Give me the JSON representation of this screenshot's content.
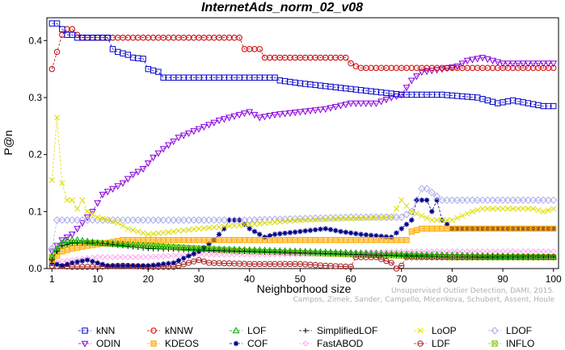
{
  "chart_data": {
    "type": "line",
    "title": "InternetAds_norm_02_v08",
    "xlabel": "Neighborhood size",
    "ylabel": "P@n",
    "xlim": [
      0,
      101
    ],
    "ylim": [
      0,
      0.44
    ],
    "xticks": [
      1,
      10,
      20,
      30,
      40,
      50,
      60,
      70,
      80,
      90,
      100
    ],
    "yticks": [
      0,
      0.1,
      0.2,
      0.3,
      0.4
    ],
    "ytick_labels": [
      "0.0",
      "0.1",
      "0.2",
      "0.3",
      "0.4"
    ],
    "grid": false,
    "legend_position": "bottom",
    "credit_lines": [
      "Unsupervised Outlier Detection, DAMI, 2015.",
      "Campos, Zimek, Sander, Campello, Micenkova, Schubert, Assent, Houle"
    ],
    "series": [
      {
        "name": "kNN",
        "color": "#0000cc",
        "marker": "square",
        "dashed": true,
        "points": [
          [
            1,
            0.43
          ],
          [
            2,
            0.43
          ],
          [
            3,
            0.42
          ],
          [
            4,
            0.41
          ],
          [
            5,
            0.41
          ],
          [
            6,
            0.405
          ],
          [
            7,
            0.405
          ],
          [
            12,
            0.405
          ],
          [
            13,
            0.385
          ],
          [
            14,
            0.38
          ],
          [
            16,
            0.375
          ],
          [
            17,
            0.37
          ],
          [
            19,
            0.368
          ],
          [
            20,
            0.35
          ],
          [
            22,
            0.345
          ],
          [
            23,
            0.335
          ],
          [
            45,
            0.335
          ],
          [
            46,
            0.33
          ],
          [
            50,
            0.325
          ],
          [
            55,
            0.32
          ],
          [
            60,
            0.315
          ],
          [
            65,
            0.31
          ],
          [
            70,
            0.305
          ],
          [
            78,
            0.305
          ],
          [
            85,
            0.3
          ],
          [
            87,
            0.295
          ],
          [
            89,
            0.29
          ],
          [
            92,
            0.295
          ],
          [
            95,
            0.29
          ],
          [
            98,
            0.285
          ],
          [
            100,
            0.285
          ]
        ]
      },
      {
        "name": "kNNW",
        "color": "#cc0000",
        "marker": "circle",
        "dashed": true,
        "points": [
          [
            1,
            0.35
          ],
          [
            2,
            0.38
          ],
          [
            3,
            0.41
          ],
          [
            4,
            0.42
          ],
          [
            5,
            0.42
          ],
          [
            6,
            0.41
          ],
          [
            7,
            0.405
          ],
          [
            38,
            0.405
          ],
          [
            39,
            0.385
          ],
          [
            42,
            0.385
          ],
          [
            43,
            0.37
          ],
          [
            59,
            0.37
          ],
          [
            60,
            0.36
          ],
          [
            61,
            0.355
          ],
          [
            62,
            0.352
          ],
          [
            100,
            0.352
          ]
        ]
      },
      {
        "name": "LOF",
        "color": "#00aa00",
        "marker": "triangle-up",
        "dashed": true,
        "points": [
          [
            1,
            0.02
          ],
          [
            2,
            0.035
          ],
          [
            3,
            0.045
          ],
          [
            4,
            0.05
          ],
          [
            6,
            0.05
          ],
          [
            10,
            0.045
          ],
          [
            20,
            0.04
          ],
          [
            30,
            0.035
          ],
          [
            50,
            0.03
          ],
          [
            70,
            0.025
          ],
          [
            100,
            0.02
          ]
        ]
      },
      {
        "name": "SimplifiedLOF",
        "color": "#000000",
        "marker": "plus",
        "dashed": true,
        "points": [
          [
            1,
            0.015
          ],
          [
            2,
            0.03
          ],
          [
            3,
            0.04
          ],
          [
            5,
            0.045
          ],
          [
            10,
            0.045
          ],
          [
            20,
            0.035
          ],
          [
            40,
            0.03
          ],
          [
            60,
            0.025
          ],
          [
            80,
            0.02
          ],
          [
            100,
            0.02
          ]
        ]
      },
      {
        "name": "LoOP",
        "color": "#dddd00",
        "marker": "x",
        "dashed": true,
        "points": [
          [
            1,
            0.155
          ],
          [
            2,
            0.265
          ],
          [
            3,
            0.15
          ],
          [
            4,
            0.12
          ],
          [
            5,
            0.12
          ],
          [
            6,
            0.105
          ],
          [
            7,
            0.12
          ],
          [
            8,
            0.1
          ],
          [
            9,
            0.095
          ],
          [
            10,
            0.09
          ],
          [
            12,
            0.085
          ],
          [
            14,
            0.08
          ],
          [
            16,
            0.07
          ],
          [
            18,
            0.065
          ],
          [
            20,
            0.06
          ],
          [
            30,
            0.07
          ],
          [
            50,
            0.085
          ],
          [
            68,
            0.09
          ],
          [
            70,
            0.12
          ],
          [
            72,
            0.1
          ],
          [
            76,
            0.085
          ],
          [
            80,
            0.085
          ],
          [
            84,
            0.1
          ],
          [
            86,
            0.105
          ],
          [
            90,
            0.105
          ],
          [
            96,
            0.105
          ],
          [
            98,
            0.1
          ],
          [
            100,
            0.105
          ]
        ]
      },
      {
        "name": "LDOF",
        "color": "#aaaaee",
        "marker": "diamond",
        "dashed": true,
        "points": [
          [
            1,
            0.035
          ],
          [
            2,
            0.085
          ],
          [
            4,
            0.085
          ],
          [
            6,
            0.085
          ],
          [
            10,
            0.085
          ],
          [
            20,
            0.085
          ],
          [
            40,
            0.085
          ],
          [
            60,
            0.09
          ],
          [
            70,
            0.09
          ],
          [
            72,
            0.1
          ],
          [
            74,
            0.14
          ],
          [
            75,
            0.14
          ],
          [
            78,
            0.12
          ],
          [
            80,
            0.12
          ],
          [
            100,
            0.12
          ]
        ]
      },
      {
        "name": "ODIN",
        "color": "#8800dd",
        "marker": "triangle-down",
        "dashed": true,
        "points": [
          [
            1,
            0.03
          ],
          [
            2,
            0.04
          ],
          [
            3,
            0.05
          ],
          [
            5,
            0.06
          ],
          [
            7,
            0.08
          ],
          [
            9,
            0.1
          ],
          [
            11,
            0.13
          ],
          [
            13,
            0.14
          ],
          [
            15,
            0.15
          ],
          [
            17,
            0.165
          ],
          [
            19,
            0.175
          ],
          [
            21,
            0.195
          ],
          [
            23,
            0.21
          ],
          [
            26,
            0.23
          ],
          [
            30,
            0.245
          ],
          [
            34,
            0.26
          ],
          [
            38,
            0.27
          ],
          [
            40,
            0.275
          ],
          [
            42,
            0.265
          ],
          [
            45,
            0.27
          ],
          [
            50,
            0.275
          ],
          [
            55,
            0.28
          ],
          [
            60,
            0.29
          ],
          [
            65,
            0.29
          ],
          [
            68,
            0.3
          ],
          [
            70,
            0.305
          ],
          [
            72,
            0.33
          ],
          [
            74,
            0.345
          ],
          [
            78,
            0.35
          ],
          [
            81,
            0.355
          ],
          [
            83,
            0.365
          ],
          [
            86,
            0.37
          ],
          [
            88,
            0.365
          ],
          [
            90,
            0.36
          ],
          [
            100,
            0.36
          ]
        ]
      },
      {
        "name": "KDEOS",
        "color": "#ffaa00",
        "marker": "square-filled",
        "dashed": true,
        "points": [
          [
            1,
            0.015
          ],
          [
            3,
            0.03
          ],
          [
            5,
            0.035
          ],
          [
            8,
            0.04
          ],
          [
            12,
            0.045
          ],
          [
            15,
            0.05
          ],
          [
            30,
            0.05
          ],
          [
            50,
            0.05
          ],
          [
            65,
            0.05
          ],
          [
            71,
            0.05
          ],
          [
            72,
            0.065
          ],
          [
            74,
            0.07
          ],
          [
            80,
            0.07
          ],
          [
            100,
            0.07
          ]
        ]
      },
      {
        "name": "COF",
        "color": "#000088",
        "marker": "asterisk",
        "dashed": true,
        "points": [
          [
            1,
            0.01
          ],
          [
            3,
            0.005
          ],
          [
            5,
            0.01
          ],
          [
            8,
            0.015
          ],
          [
            10,
            0.01
          ],
          [
            12,
            0.005
          ],
          [
            20,
            0.005
          ],
          [
            25,
            0.01
          ],
          [
            30,
            0.03
          ],
          [
            33,
            0.05
          ],
          [
            35,
            0.07
          ],
          [
            36,
            0.085
          ],
          [
            38,
            0.085
          ],
          [
            40,
            0.07
          ],
          [
            43,
            0.055
          ],
          [
            45,
            0.06
          ],
          [
            50,
            0.065
          ],
          [
            55,
            0.07
          ],
          [
            58,
            0.065
          ],
          [
            62,
            0.06
          ],
          [
            68,
            0.055
          ],
          [
            70,
            0.07
          ],
          [
            72,
            0.085
          ],
          [
            73,
            0.12
          ],
          [
            75,
            0.12
          ],
          [
            76,
            0.1
          ],
          [
            77,
            0.12
          ],
          [
            78,
            0.085
          ],
          [
            80,
            0.07
          ],
          [
            100,
            0.07
          ]
        ]
      },
      {
        "name": "FastABOD",
        "color": "#ffaaee",
        "marker": "diamond-small",
        "dashed": true,
        "points": [
          [
            1,
            0.01
          ],
          [
            5,
            0.015
          ],
          [
            10,
            0.02
          ],
          [
            20,
            0.02
          ],
          [
            30,
            0.025
          ],
          [
            50,
            0.025
          ],
          [
            70,
            0.03
          ],
          [
            100,
            0.03
          ]
        ]
      },
      {
        "name": "LDF",
        "color": "#aa2222",
        "marker": "circle-dot",
        "dashed": true,
        "points": [
          [
            1,
            0.005
          ],
          [
            5,
            0.003
          ],
          [
            10,
            0.003
          ],
          [
            15,
            0.005
          ],
          [
            20,
            0.003
          ],
          [
            25,
            0.003
          ],
          [
            28,
            0.01
          ],
          [
            30,
            0.015
          ],
          [
            32,
            0.01
          ],
          [
            40,
            0.008
          ],
          [
            50,
            0.008
          ],
          [
            55,
            0.005
          ],
          [
            60,
            0.003
          ],
          [
            61,
            0.02
          ],
          [
            65,
            0.02
          ],
          [
            68,
            0.01
          ],
          [
            69,
            0.0
          ],
          [
            70,
            0.005
          ],
          [
            71,
            0.02
          ],
          [
            100,
            0.02
          ]
        ]
      },
      {
        "name": "INFLO",
        "color": "#88cc00",
        "marker": "square-x",
        "dashed": true,
        "points": [
          [
            1,
            0.02
          ],
          [
            2,
            0.03
          ],
          [
            3,
            0.04
          ],
          [
            5,
            0.045
          ],
          [
            10,
            0.045
          ],
          [
            20,
            0.04
          ],
          [
            40,
            0.03
          ],
          [
            60,
            0.025
          ],
          [
            80,
            0.02
          ],
          [
            100,
            0.02
          ]
        ]
      }
    ]
  }
}
